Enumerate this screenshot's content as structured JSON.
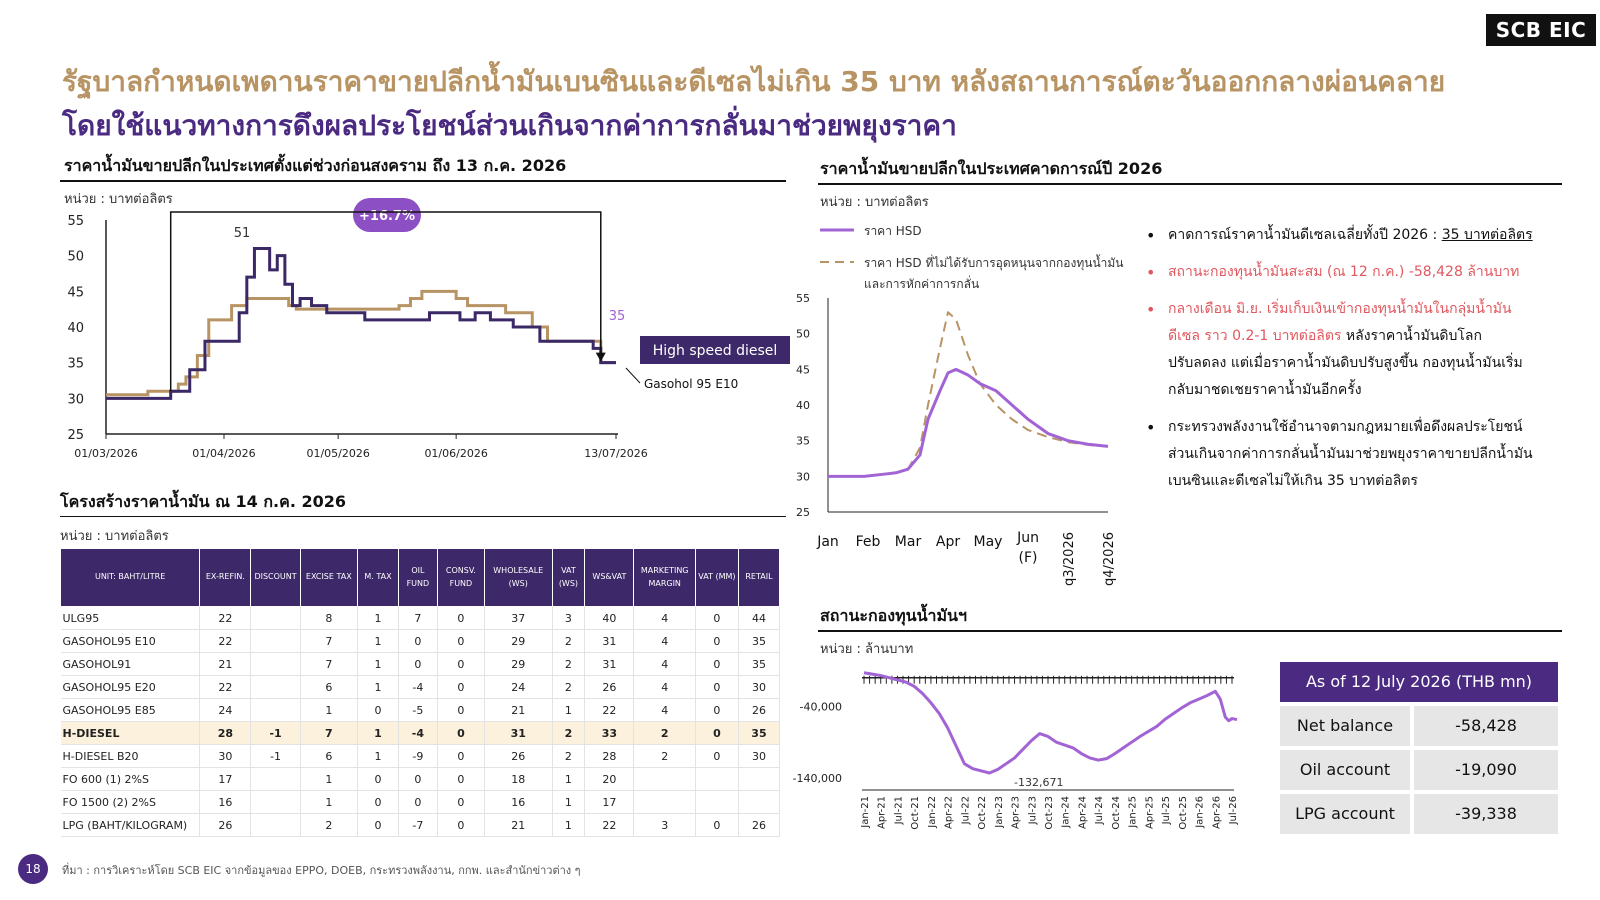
{
  "logo": "SCB EIC",
  "title_line1": "รัฐบาลกำหนดเพดานราคาขายปลีกน้ำมันเบนซินและดีเซลไม่เกิน 35 บาท หลังสถานการณ์ตะวันออกกลางผ่อนคลาย",
  "title_line2": "โดยใช้แนวทางการดึงผลประโยชน์ส่วนเกินจากค่าการกลั่นมาช่วยพยุงราคา",
  "unit_baht_per_litre": "หน่วย : บาทต่อลิตร",
  "unit_mn_baht": "หน่วย : ล้านบาท",
  "chart1": {
    "title": "ราคาน้ำมันขายปลีกในประเทศตั้งแต่ช่วงก่อนสงคราม ถึง 13 ก.ค. 2026",
    "badge": "+16.7%",
    "peak_label": "51",
    "end_label": "35",
    "legend_hsd": "High speed diesel",
    "legend_gasohol": "Gasohol 95 E10"
  },
  "chart2": {
    "title": "ราคาน้ำมันขายปลีกในประเทศคาดการณ์ปี 2026",
    "legend_solid": "ราคา HSD",
    "legend_dashed_l1": "ราคา HSD ที่ไม่ได้รับการอุดหนุนจากกองทุนน้ำมัน",
    "legend_dashed_l2": "และการหักค่าการกลั่น"
  },
  "chart3": {
    "title": "สถานะกองทุนน้ำมันฯ",
    "min_label": "-132,671"
  },
  "bullets": {
    "b1_a": "คาดการณ์ราคาน้ำมันดีเซลเฉลี่ยทั้งปี 2026 : ",
    "b1_b": "35 บาทต่อลิตร",
    "b2": "สถานะกองทุนน้ำมันสะสม (ณ 12 ก.ค.) -58,428 ล้านบาท",
    "b3_l1": "กลางเดือน มิ.ย. เริ่มเก็บเงินเข้ากองทุนน้ำมันในกลุ่มน้ำมัน",
    "b3_l2a": "ดีเซล ราว 0.2-1 บาทต่อลิตร",
    "b3_l2b": " หลังราคาน้ำมันดิบโลก",
    "b3_l3": "ปรับลดลง แต่เมื่อราคาน้ำมันดิบปรับสูงขึ้น กองทุนน้ำมันเริ่ม",
    "b3_l4": "กลับมาชดเชยราคาน้ำมันอีกครั้ง",
    "b4_l1": "กระทรวงพลังงานใช้อำนาจตามกฎหมายเพื่อดึงผลประโยชน์",
    "b4_l2": "ส่วนเกินจากค่าการกลั่นน้ำมันมาช่วยพยุงราคาขายปลีกน้ำมัน",
    "b4_l3": "เบนซินและดีเซลไม่ให้เกิน 35 บาทต่อลิตร"
  },
  "fund_box": {
    "header": "As of 12 July 2026 (THB mn)",
    "rows": [
      {
        "k": "Net balance",
        "v": "-58,428"
      },
      {
        "k": "Oil account",
        "v": "-19,090"
      },
      {
        "k": "LPG account",
        "v": "-39,338"
      }
    ]
  },
  "table": {
    "title": "โครงสร้างราคาน้ำมัน ณ 14 ก.ค. 2026",
    "headers": [
      "UNIT: BAHT/LITRE",
      "EX-REFIN.",
      "DISCOUNT",
      "EXCISE TAX",
      "M. TAX",
      "OIL FUND",
      "CONSV. FUND",
      "WHOLESALE (WS)",
      "VAT (WS)",
      "WS&VAT",
      "MARKETING MARGIN",
      "VAT (MM)",
      "RETAIL"
    ],
    "rows": [
      [
        "ULG95",
        "22",
        "",
        "8",
        "1",
        "7",
        "0",
        "37",
        "3",
        "40",
        "4",
        "0",
        "44"
      ],
      [
        "GASOHOL95 E10",
        "22",
        "",
        "7",
        "1",
        "0",
        "0",
        "29",
        "2",
        "31",
        "4",
        "0",
        "35"
      ],
      [
        "GASOHOL91",
        "21",
        "",
        "7",
        "1",
        "0",
        "0",
        "29",
        "2",
        "31",
        "4",
        "0",
        "35"
      ],
      [
        "GASOHOL95 E20",
        "22",
        "",
        "6",
        "1",
        "-4",
        "0",
        "24",
        "2",
        "26",
        "4",
        "0",
        "30"
      ],
      [
        "GASOHOL95 E85",
        "24",
        "",
        "1",
        "0",
        "-5",
        "0",
        "21",
        "1",
        "22",
        "4",
        "0",
        "26"
      ],
      [
        "H-DIESEL",
        "28",
        "-1",
        "7",
        "1",
        "-4",
        "0",
        "31",
        "2",
        "33",
        "2",
        "0",
        "35"
      ],
      [
        "H-DIESEL  B20",
        "30",
        "-1",
        "6",
        "1",
        "-9",
        "0",
        "26",
        "2",
        "28",
        "2",
        "0",
        "30"
      ],
      [
        "FO 600 (1) 2%S",
        "17",
        "",
        "1",
        "0",
        "0",
        "0",
        "18",
        "1",
        "20",
        "",
        "",
        ""
      ],
      [
        "FO 1500 (2) 2%S",
        "16",
        "",
        "1",
        "0",
        "0",
        "0",
        "16",
        "1",
        "17",
        "",
        "",
        ""
      ],
      [
        "LPG (BAHT/KILOGRAM)",
        "26",
        "",
        "2",
        "0",
        "-7",
        "0",
        "21",
        "1",
        "22",
        "3",
        "0",
        "26"
      ]
    ]
  },
  "footer": {
    "page": "18",
    "source": "ที่มา : การวิเคราะห์โดย SCB EIC จากข้อมูลของ EPPO, DOEB, กระทรวงพลังงาน, กกพ. และสำนักข่าวต่าง ๆ"
  },
  "colors": {
    "purple": "#4b2a82",
    "hsd": "#3b2866",
    "gasohol": "#b89464",
    "forecast": "#a264d4",
    "fund": "#a264d4",
    "red": "#e0585f"
  },
  "chart_data": [
    {
      "type": "line",
      "x_ticks": [
        "01/03/2026",
        "01/04/2026",
        "01/05/2026",
        "01/06/2026",
        "13/07/2026"
      ],
      "ylim": [
        25,
        55
      ],
      "y_ticks": [
        25,
        30,
        35,
        40,
        45,
        50,
        55
      ],
      "series": [
        {
          "name": "High speed diesel",
          "points": [
            [
              "2026-03-01",
              30
            ],
            [
              "2026-03-09",
              30
            ],
            [
              "2026-03-16",
              30
            ],
            [
              "2026-03-18",
              31
            ],
            [
              "2026-03-23",
              34
            ],
            [
              "2026-03-27",
              38
            ],
            [
              "2026-04-02",
              38
            ],
            [
              "2026-04-05",
              42
            ],
            [
              "2026-04-07",
              47
            ],
            [
              "2026-04-09",
              51
            ],
            [
              "2026-04-11",
              51
            ],
            [
              "2026-04-13",
              48
            ],
            [
              "2026-04-15",
              50
            ],
            [
              "2026-04-17",
              46
            ],
            [
              "2026-04-19",
              43
            ],
            [
              "2026-04-21",
              44
            ],
            [
              "2026-04-24",
              43
            ],
            [
              "2026-04-28",
              42
            ],
            [
              "2026-05-01",
              42
            ],
            [
              "2026-05-06",
              42
            ],
            [
              "2026-05-08",
              41
            ],
            [
              "2026-05-13",
              41
            ],
            [
              "2026-05-21",
              41
            ],
            [
              "2026-05-25",
              42
            ],
            [
              "2026-05-29",
              42
            ],
            [
              "2026-06-02",
              41
            ],
            [
              "2026-06-06",
              42
            ],
            [
              "2026-06-10",
              41
            ],
            [
              "2026-06-14",
              41
            ],
            [
              "2026-06-16",
              40
            ],
            [
              "2026-06-19",
              40
            ],
            [
              "2026-06-23",
              38
            ],
            [
              "2026-07-01",
              38
            ],
            [
              "2026-07-04",
              38
            ],
            [
              "2026-07-07",
              37
            ],
            [
              "2026-07-09",
              35
            ],
            [
              "2026-07-13",
              35
            ]
          ]
        },
        {
          "name": "Gasohol 95 E10",
          "points": [
            [
              "2026-03-01",
              30.5
            ],
            [
              "2026-03-09",
              30.5
            ],
            [
              "2026-03-12",
              31
            ],
            [
              "2026-03-18",
              31
            ],
            [
              "2026-03-20",
              32
            ],
            [
              "2026-03-22",
              33
            ],
            [
              "2026-03-25",
              36
            ],
            [
              "2026-03-28",
              41
            ],
            [
              "2026-04-01",
              41
            ],
            [
              "2026-04-03",
              43
            ],
            [
              "2026-04-07",
              44
            ],
            [
              "2026-04-14",
              44
            ],
            [
              "2026-04-18",
              43
            ],
            [
              "2026-04-20",
              42.5
            ],
            [
              "2026-05-15",
              42.5
            ],
            [
              "2026-05-17",
              43
            ],
            [
              "2026-05-20",
              44
            ],
            [
              "2026-05-23",
              45
            ],
            [
              "2026-05-29",
              45
            ],
            [
              "2026-06-01",
              44
            ],
            [
              "2026-06-04",
              43
            ],
            [
              "2026-06-12",
              43
            ],
            [
              "2026-06-14",
              42
            ],
            [
              "2026-06-18",
              42
            ],
            [
              "2026-06-21",
              40
            ],
            [
              "2026-06-25",
              38
            ],
            [
              "2026-07-06",
              38
            ],
            [
              "2026-07-09",
              35
            ],
            [
              "2026-07-13",
              35
            ]
          ]
        }
      ],
      "annotations": [
        "51",
        "35",
        "+16.7%"
      ]
    },
    {
      "type": "line",
      "categories": [
        "Jan",
        "Feb",
        "Mar",
        "Apr",
        "May",
        "Jun (F)",
        "q3/2026",
        "q4/2026"
      ],
      "ylim": [
        25,
        55
      ],
      "y_ticks": [
        25,
        30,
        35,
        40,
        45,
        50,
        55
      ],
      "series": [
        {
          "name": "ราคา HSD",
          "x": [
            0,
            0.3,
            0.9,
            1.4,
            1.7,
            2.0,
            2.3,
            2.5,
            2.8,
            3.0,
            3.2,
            3.5,
            3.8,
            4.2,
            4.6,
            5.0,
            5.5,
            6.0,
            6.5,
            7.0
          ],
          "values": [
            30,
            30,
            30,
            30.3,
            30.5,
            31,
            33,
            38,
            42,
            44.5,
            45,
            44.2,
            43,
            42,
            40,
            38,
            36,
            35,
            34.5,
            34.2
          ]
        },
        {
          "name": "ราคา HSD ที่ไม่ได้รับการอุดหนุนจากกองทุนน้ำมัน และการหักค่าการกลั่น",
          "x": [
            0,
            0.3,
            0.9,
            1.4,
            1.7,
            2.0,
            2.3,
            2.5,
            2.8,
            3.0,
            3.2,
            3.5,
            3.8,
            4.2,
            4.6,
            5.0,
            5.5,
            6.0,
            6.5,
            7.0
          ],
          "values": [
            30,
            30,
            30,
            30.3,
            30.5,
            31,
            34,
            40,
            48,
            53,
            52,
            47,
            43,
            40,
            38,
            36.5,
            35.5,
            34.8,
            34.4,
            34.2
          ]
        }
      ]
    },
    {
      "type": "line",
      "categories": [
        "Jan-21",
        "Apr-21",
        "Jul-21",
        "Oct-21",
        "Jan-22",
        "Apr-22",
        "Jul-22",
        "Oct-22",
        "Jan-23",
        "Apr-23",
        "Jul-23",
        "Oct-23",
        "Jan-24",
        "Apr-24",
        "Jul-24",
        "Oct-24",
        "Jan-25",
        "Apr-25",
        "Jul-25",
        "Oct-25",
        "Jan-26",
        "Apr-26",
        "Jul-26"
      ],
      "y_ticks": [
        -40000,
        -140000
      ],
      "series": [
        {
          "name": "",
          "x": [
            0,
            0.5,
            1,
            1.5,
            2,
            2.5,
            3,
            3.5,
            4,
            4.5,
            5,
            5.5,
            6,
            6.5,
            7,
            7.5,
            8,
            8.5,
            9,
            9.5,
            10,
            10.5,
            11,
            11.5,
            12,
            12.5,
            13,
            13.5,
            14,
            14.5,
            15,
            15.5,
            16,
            16.5,
            17,
            17.5,
            18,
            18.5,
            19,
            19.5,
            20,
            20.5,
            21,
            21.3,
            21.6,
            21.8,
            22,
            22.3
          ],
          "values": [
            7000,
            5000,
            3000,
            0,
            -3000,
            -6000,
            -12000,
            -22000,
            -35000,
            -50000,
            -70000,
            -95000,
            -120000,
            -127000,
            -130000,
            -133000,
            -128000,
            -120000,
            -112000,
            -100000,
            -88000,
            -78000,
            -82000,
            -90000,
            -94000,
            -98000,
            -106000,
            -112000,
            -115000,
            -113000,
            -106000,
            -98000,
            -90000,
            -82000,
            -75000,
            -68000,
            -58000,
            -50000,
            -42000,
            -35000,
            -30000,
            -25000,
            -19000,
            -30000,
            -55000,
            -60000,
            -57000,
            -58428
          ]
        }
      ],
      "annotations": [
        "-132,671"
      ]
    }
  ]
}
